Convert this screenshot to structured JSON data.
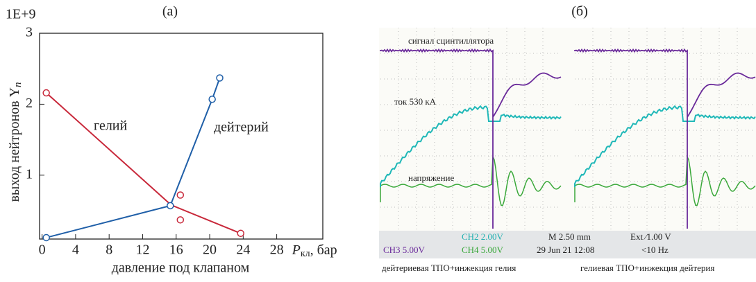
{
  "chart_data": {
    "type": "line",
    "title": "(a)",
    "multiplier": "1E+9",
    "ylabel": "выход нейтронов Y",
    "ylabel_sub": "n",
    "xlabel": "давление под клапаном",
    "x_unit": "P",
    "x_unit_sub": "кл",
    "x_unit_suffix": ", бар",
    "xlim": [
      -0.3,
      33.5
    ],
    "xticks": [
      0,
      4,
      8,
      12,
      16,
      20,
      24,
      28
    ],
    "ylim": [
      0.1,
      3
    ],
    "yticks": [
      1,
      2,
      3
    ],
    "series": [
      {
        "name": "гелий",
        "color": "#c8283a",
        "x": [
          0.5,
          15.4,
          23.7
        ],
        "values": [
          2.16,
          0.58,
          0.18
        ],
        "markers": [
          true,
          false,
          true
        ]
      },
      {
        "name": "дейтерий",
        "color": "#1f5fa8",
        "x": [
          0.5,
          15.3,
          20.3,
          21.2
        ],
        "values": [
          0.12,
          0.57,
          2.07,
          2.37
        ],
        "markers": [
          true,
          true,
          true,
          true
        ]
      },
      {
        "type": "scatter",
        "color": "#c8283a",
        "x": [
          16.5,
          16.5
        ],
        "values": [
          0.72,
          0.37
        ]
      }
    ]
  },
  "oscilloscope": {
    "title": "(б)",
    "trace_labels": [
      "сигнал сцинтиллятора",
      "ток 530 кА",
      "напряжение"
    ],
    "status": [
      "CH2 2.00V",
      "M 2.50 mm",
      "Ext ∕1.00 V",
      "CH3 5.00V",
      "CH4 5.00V",
      "29 Jun 21 12:08",
      "<10 Hz"
    ],
    "captions": [
      "дейтериевая ТПО+инжекция гелия",
      "гелиевая ТПО+инжекция дейтерия"
    ]
  }
}
